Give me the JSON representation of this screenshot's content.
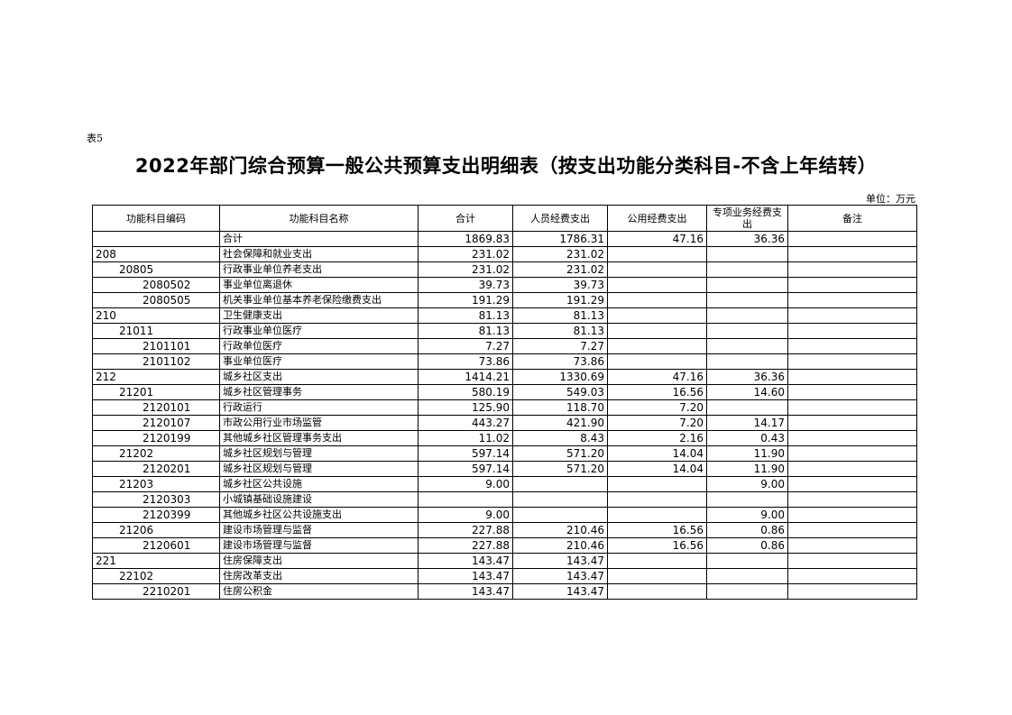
{
  "doc": {
    "table_no": "表5",
    "title": "2022年部门综合预算一般公共预算支出明细表（按支出功能分类科目-不含上年结转）",
    "unit": "单位：万元"
  },
  "headers": [
    "功能科目编码",
    "功能科目名称",
    "合计",
    "人员经费支出",
    "公用经费支出",
    "专项业务经费支出",
    "备注"
  ],
  "rows": [
    {
      "level": 0,
      "code": "",
      "name": "合计",
      "total": "1869.83",
      "personnel": "1786.31",
      "public": "47.16",
      "special": "36.36",
      "note": ""
    },
    {
      "level": 1,
      "code": "208",
      "name": "社会保障和就业支出",
      "total": "231.02",
      "personnel": "231.02",
      "public": "",
      "special": "",
      "note": ""
    },
    {
      "level": 2,
      "code": "20805",
      "name": "行政事业单位养老支出",
      "total": "231.02",
      "personnel": "231.02",
      "public": "",
      "special": "",
      "note": ""
    },
    {
      "level": 3,
      "code": "2080502",
      "name": "事业单位离退休",
      "total": "39.73",
      "personnel": "39.73",
      "public": "",
      "special": "",
      "note": ""
    },
    {
      "level": 3,
      "code": "2080505",
      "name": "机关事业单位基本养老保险缴费支出",
      "total": "191.29",
      "personnel": "191.29",
      "public": "",
      "special": "",
      "note": ""
    },
    {
      "level": 1,
      "code": "210",
      "name": "卫生健康支出",
      "total": "81.13",
      "personnel": "81.13",
      "public": "",
      "special": "",
      "note": ""
    },
    {
      "level": 2,
      "code": "21011",
      "name": "行政事业单位医疗",
      "total": "81.13",
      "personnel": "81.13",
      "public": "",
      "special": "",
      "note": ""
    },
    {
      "level": 3,
      "code": "2101101",
      "name": "行政单位医疗",
      "total": "7.27",
      "personnel": "7.27",
      "public": "",
      "special": "",
      "note": ""
    },
    {
      "level": 3,
      "code": "2101102",
      "name": "事业单位医疗",
      "total": "73.86",
      "personnel": "73.86",
      "public": "",
      "special": "",
      "note": ""
    },
    {
      "level": 1,
      "code": "212",
      "name": "城乡社区支出",
      "total": "1414.21",
      "personnel": "1330.69",
      "public": "47.16",
      "special": "36.36",
      "note": ""
    },
    {
      "level": 2,
      "code": "21201",
      "name": "城乡社区管理事务",
      "total": "580.19",
      "personnel": "549.03",
      "public": "16.56",
      "special": "14.60",
      "note": ""
    },
    {
      "level": 3,
      "code": "2120101",
      "name": "行政运行",
      "total": "125.90",
      "personnel": "118.70",
      "public": "7.20",
      "special": "",
      "note": ""
    },
    {
      "level": 3,
      "code": "2120107",
      "name": "市政公用行业市场监管",
      "total": "443.27",
      "personnel": "421.90",
      "public": "7.20",
      "special": "14.17",
      "note": ""
    },
    {
      "level": 3,
      "code": "2120199",
      "name": "其他城乡社区管理事务支出",
      "total": "11.02",
      "personnel": "8.43",
      "public": "2.16",
      "special": "0.43",
      "note": ""
    },
    {
      "level": 2,
      "code": "21202",
      "name": "城乡社区规划与管理",
      "total": "597.14",
      "personnel": "571.20",
      "public": "14.04",
      "special": "11.90",
      "note": ""
    },
    {
      "level": 3,
      "code": "2120201",
      "name": "城乡社区规划与管理",
      "total": "597.14",
      "personnel": "571.20",
      "public": "14.04",
      "special": "11.90",
      "note": ""
    },
    {
      "level": 2,
      "code": "21203",
      "name": "城乡社区公共设施",
      "total": "9.00",
      "personnel": "",
      "public": "",
      "special": "9.00",
      "note": ""
    },
    {
      "level": 3,
      "code": "2120303",
      "name": "小城镇基础设施建设",
      "total": "",
      "personnel": "",
      "public": "",
      "special": "",
      "note": ""
    },
    {
      "level": 3,
      "code": "2120399",
      "name": "其他城乡社区公共设施支出",
      "total": "9.00",
      "personnel": "",
      "public": "",
      "special": "9.00",
      "note": ""
    },
    {
      "level": 2,
      "code": "21206",
      "name": "建设市场管理与监督",
      "total": "227.88",
      "personnel": "210.46",
      "public": "16.56",
      "special": "0.86",
      "note": ""
    },
    {
      "level": 3,
      "code": "2120601",
      "name": "建设市场管理与监督",
      "total": "227.88",
      "personnel": "210.46",
      "public": "16.56",
      "special": "0.86",
      "note": ""
    },
    {
      "level": 1,
      "code": "221",
      "name": "住房保障支出",
      "total": "143.47",
      "personnel": "143.47",
      "public": "",
      "special": "",
      "note": ""
    },
    {
      "level": 2,
      "code": "22102",
      "name": "住房改革支出",
      "total": "143.47",
      "personnel": "143.47",
      "public": "",
      "special": "",
      "note": ""
    },
    {
      "level": 3,
      "code": "2210201",
      "name": "住房公积金",
      "total": "143.47",
      "personnel": "143.47",
      "public": "",
      "special": "",
      "note": ""
    }
  ]
}
